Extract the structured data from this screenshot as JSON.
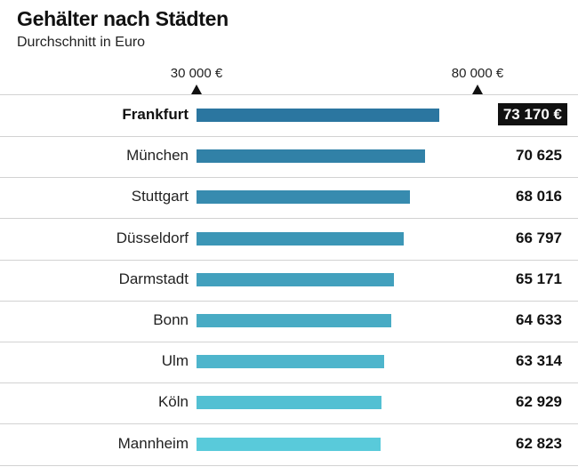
{
  "header": {
    "title": "Gehälter nach Städten",
    "subtitle": "Durchschnitt in Euro"
  },
  "chart_data": {
    "type": "bar",
    "orientation": "horizontal",
    "title": "Gehälter nach Städten",
    "subtitle": "Durchschnitt in Euro",
    "categories": [
      "Frankfurt",
      "München",
      "Stuttgart",
      "Düsseldorf",
      "Darmstadt",
      "Bonn",
      "Ulm",
      "Köln",
      "Mannheim"
    ],
    "values": [
      73170,
      70625,
      68016,
      66797,
      65171,
      64633,
      63314,
      62929,
      62823
    ],
    "value_labels": [
      "73 170 €",
      "70 625",
      "68 016",
      "66 797",
      "65 171",
      "64 633",
      "63 314",
      "62 929",
      "62 823"
    ],
    "highlight": "Frankfurt",
    "xlim": [
      30000,
      80000
    ],
    "reference_markers": [
      {
        "value": 30000,
        "label": "30 000 €"
      },
      {
        "value": 80000,
        "label": "80 000 €"
      }
    ],
    "colors": {
      "bar_dark": "#2b76a0",
      "bar_light": "#59cada",
      "highlight_bg": "#111111",
      "highlight_text": "#ffffff"
    },
    "grid": false
  }
}
